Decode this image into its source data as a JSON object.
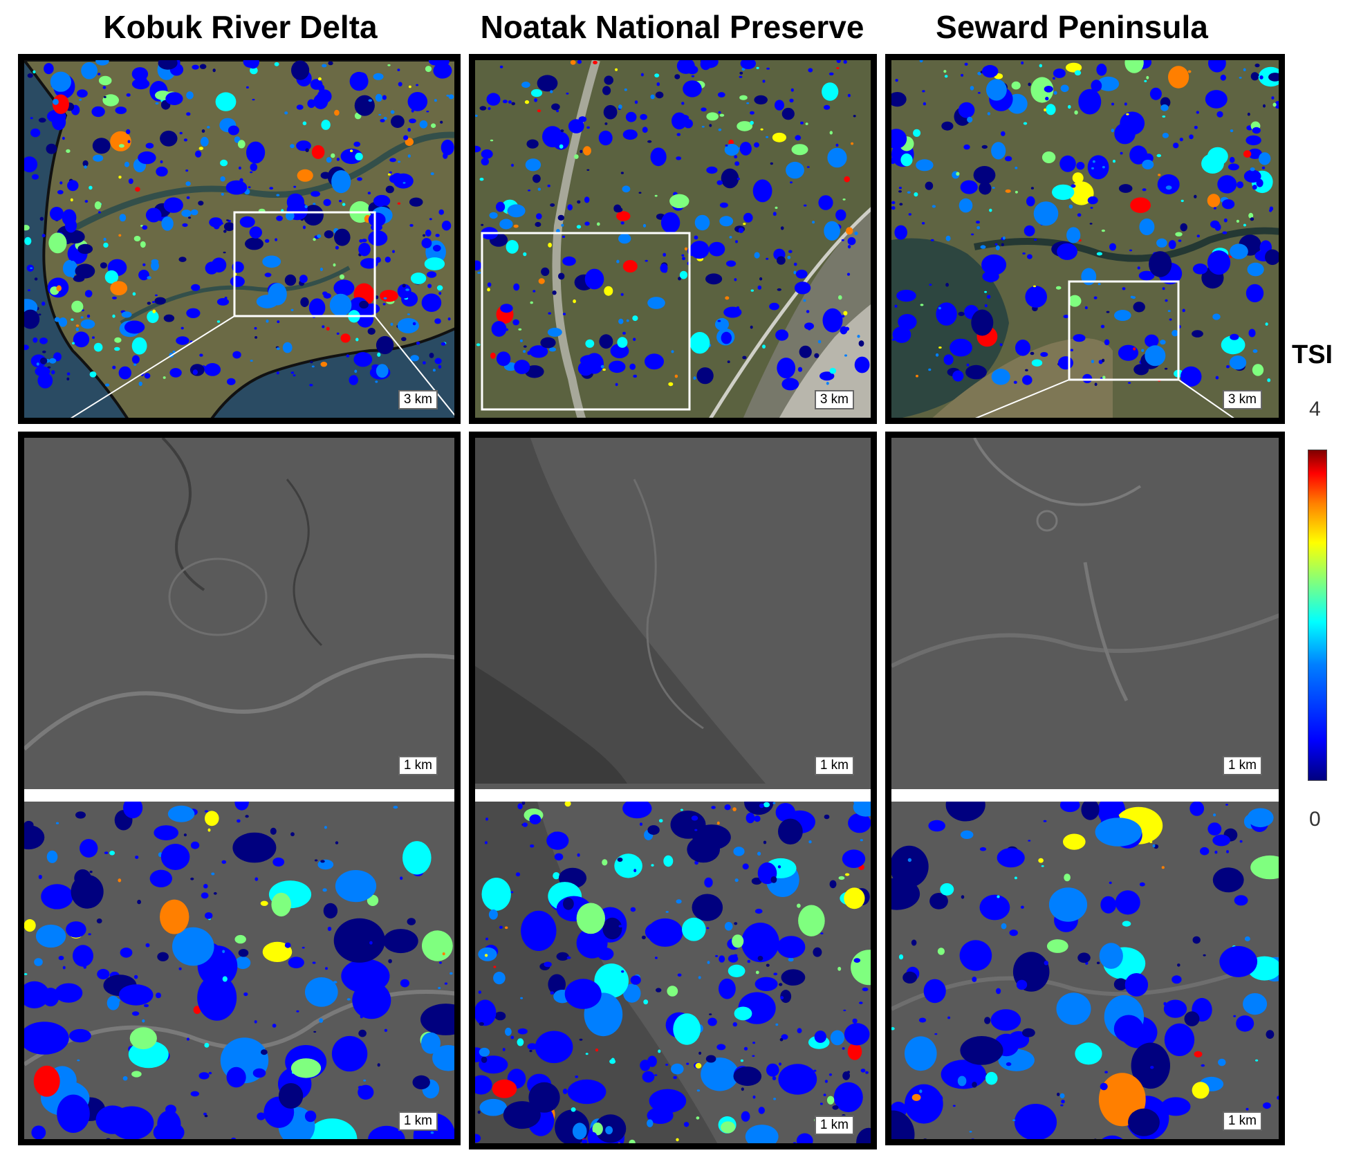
{
  "titles": [
    "Kobuk River Delta",
    "Noatak National Preserve",
    "Seward Peninsula"
  ],
  "scales": {
    "overview": [
      "3 km",
      "3 km",
      "3 km"
    ],
    "relief": [
      "1 km",
      "1 km",
      "1 km"
    ],
    "lakes": [
      "1 km",
      "1 km",
      "1 km"
    ]
  },
  "colorbar": {
    "label": "TSI",
    "max": "4",
    "min": "0"
  },
  "colors": {
    "frame": "#000000",
    "relief_gray": "#5a5a5a",
    "land": "#6b6a45",
    "water": "#2a4b63",
    "colormap": [
      "#00007f",
      "#0000ff",
      "#007fff",
      "#00ffff",
      "#7fff7f",
      "#ffff00",
      "#ff7f00",
      "#ff0000",
      "#7f0000"
    ]
  }
}
